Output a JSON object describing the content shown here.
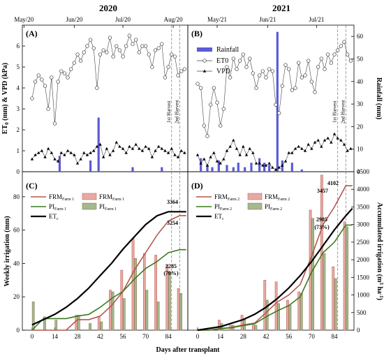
{
  "colors": {
    "rainfall": "#5b5bd6",
    "frm_line": "#b4564e",
    "frm_bar_fill": "#e7a9a3",
    "frm_bar_edge": "#b4564e",
    "pi_line": "#3b7a1f",
    "pi_bar_fill": "#a4b98d",
    "pi_bar_edge": "#7a6d4a",
    "etc": "#000000",
    "frm_total_text": "#b4564e",
    "pi_total_text": "#3b7a1f"
  },
  "chart_data": [
    {
      "panel": "(A)",
      "type": "line",
      "title": "2020",
      "top_axis_ticks": [
        "May/20",
        "Jun/20",
        "Jul/20",
        "Aug/20"
      ],
      "ylabel": "ET0 (mm) & VPD (kPa)",
      "ylabel_parts": {
        "a": "ET",
        "sub": "0",
        "b": " (mm) & VPD (kPa)"
      },
      "ylim": [
        0,
        7
      ],
      "yticks": [
        0,
        1,
        2,
        3,
        4,
        5,
        6
      ],
      "rain_ylim": [
        0,
        65
      ],
      "x_range": [
        -6,
        96
      ],
      "harvest_markers": [
        {
          "day": 86,
          "label": "1st Harvest"
        },
        {
          "day": 91,
          "label": "2nd Harvest"
        }
      ],
      "series": [
        {
          "name": "ET0",
          "marker": "circle",
          "x": [
            0,
            2,
            4,
            6,
            8,
            10,
            12,
            14,
            16,
            18,
            20,
            22,
            24,
            26,
            28,
            30,
            32,
            34,
            36,
            38,
            40,
            42,
            44,
            46,
            48,
            50,
            52,
            54,
            56,
            58,
            60,
            62,
            64,
            66,
            68,
            70,
            72,
            74,
            76,
            78,
            80,
            82,
            84,
            86,
            88,
            90,
            92,
            94
          ],
          "y": [
            3.5,
            4.3,
            4.6,
            4.4,
            4.1,
            3.0,
            4.5,
            2.3,
            4.3,
            4.8,
            4.7,
            4.5,
            4.9,
            5.2,
            5.6,
            5.3,
            5.7,
            6.0,
            6.3,
            5.9,
            4.0,
            5.6,
            5.8,
            5.7,
            6.4,
            5.5,
            6.0,
            5.8,
            5.5,
            6.0,
            6.5,
            6.1,
            6.3,
            5.7,
            6.0,
            6.0,
            5.6,
            5.0,
            5.8,
            5.9,
            6.1,
            4.5,
            5.0,
            5.6,
            5.5,
            4.6,
            4.8,
            4.9
          ]
        },
        {
          "name": "VPD",
          "marker": "triangle",
          "x": [
            0,
            2,
            4,
            6,
            8,
            10,
            12,
            14,
            16,
            18,
            20,
            22,
            24,
            26,
            28,
            30,
            32,
            34,
            36,
            38,
            40,
            42,
            44,
            46,
            48,
            50,
            52,
            54,
            56,
            58,
            60,
            62,
            64,
            66,
            68,
            70,
            72,
            74,
            76,
            78,
            80,
            82,
            84,
            86,
            88,
            90,
            92,
            94
          ],
          "y": [
            0.6,
            0.8,
            0.9,
            1.0,
            0.7,
            1.1,
            0.9,
            0.6,
            0.5,
            0.9,
            0.8,
            1.0,
            0.9,
            0.8,
            0.4,
            0.6,
            0.9,
            0.8,
            0.9,
            1.0,
            1.2,
            1.3,
            0.7,
            1.1,
            0.8,
            1.0,
            1.4,
            1.2,
            1.1,
            0.9,
            1.2,
            1.1,
            1.3,
            1.1,
            1.0,
            1.2,
            1.1,
            0.7,
            1.0,
            1.2,
            1.1,
            1.0,
            0.9,
            1.1,
            0.8,
            0.7,
            1.0,
            0.9
          ]
        },
        {
          "name": "Rainfall",
          "axis": "right",
          "type": "bar",
          "x": [
            17,
            36,
            41,
            62,
            80
          ],
          "y": [
            7,
            5,
            24,
            2,
            2
          ]
        }
      ]
    },
    {
      "panel": "(B)",
      "type": "line",
      "title": "2021",
      "top_axis_ticks": [
        "May/21",
        "Jun/21",
        "Jul/21"
      ],
      "right_ylabel": "Rainfall (mm)",
      "ylim": [
        0,
        7
      ],
      "rain_ylim": [
        0,
        65
      ],
      "rain_yticks": [
        0,
        10,
        20,
        30,
        40,
        50,
        60
      ],
      "x_range": [
        -6,
        96
      ],
      "harvest_markers": [
        {
          "day": 86,
          "label": "1st Harvest"
        },
        {
          "day": 91,
          "label": "2nd Harvest"
        }
      ],
      "legend": [
        "Rainfall",
        "ET0",
        "VPD"
      ],
      "series": [
        {
          "name": "ET0",
          "marker": "circle",
          "x": [
            0,
            2,
            4,
            6,
            8,
            10,
            12,
            14,
            16,
            18,
            20,
            22,
            24,
            26,
            28,
            30,
            32,
            34,
            36,
            38,
            40,
            42,
            44,
            46,
            48,
            50,
            52,
            54,
            56,
            58,
            60,
            62,
            64,
            66,
            68,
            70,
            72,
            74,
            76,
            78,
            80,
            82,
            84,
            86,
            88,
            90,
            92,
            94
          ],
          "y": [
            4.2,
            4.0,
            2.2,
            1.7,
            3.2,
            4.0,
            3.3,
            2.2,
            3.0,
            5.0,
            4.5,
            5.4,
            4.9,
            5.3,
            5.6,
            5.0,
            5.4,
            4.7,
            4.0,
            4.6,
            4.8,
            4.5,
            4.9,
            4.8,
            3.2,
            2.8,
            4.1,
            5.1,
            4.9,
            3.9,
            4.0,
            5.2,
            4.5,
            4.6,
            5.3,
            4.3,
            3.8,
            5.0,
            5.4,
            4.9,
            5.6,
            5.2,
            5.6,
            5.8,
            6.0,
            6.2,
            5.6,
            5.3
          ]
        },
        {
          "name": "VPD",
          "marker": "triangle",
          "x": [
            0,
            2,
            4,
            6,
            8,
            10,
            12,
            14,
            16,
            18,
            20,
            22,
            24,
            26,
            28,
            30,
            32,
            34,
            36,
            38,
            40,
            42,
            44,
            46,
            48,
            50,
            52,
            54,
            56,
            58,
            60,
            62,
            64,
            66,
            68,
            70,
            72,
            74,
            76,
            78,
            80,
            82,
            84,
            86,
            88,
            90,
            92,
            94
          ],
          "y": [
            0.8,
            0.4,
            0.6,
            0.3,
            0.7,
            0.9,
            0.5,
            0.4,
            0.6,
            1.0,
            1.2,
            1.5,
            1.1,
            0.8,
            1.2,
            0.8,
            1.1,
            0.9,
            0.4,
            0.4,
            0.3,
            0.3,
            0.4,
            0.2,
            0.1,
            0.2,
            0.3,
            0.5,
            0.9,
            0.9,
            1.1,
            1.2,
            1.1,
            1.0,
            1.3,
            1.1,
            1.4,
            1.5,
            1.2,
            1.5,
            1.6,
            1.4,
            1.8,
            1.6,
            1.5,
            1.3,
            1.0,
            1.1
          ]
        },
        {
          "name": "Rainfall",
          "axis": "right",
          "type": "bar",
          "x": [
            2,
            6,
            9,
            13,
            18,
            22,
            25,
            29,
            33,
            38,
            41,
            44,
            49,
            52,
            58,
            64
          ],
          "y": [
            6,
            3,
            2,
            5,
            3,
            2,
            4,
            2,
            4,
            6,
            4,
            3,
            62,
            5,
            4,
            1
          ]
        }
      ]
    },
    {
      "panel": "(C)",
      "type": "bar",
      "ylabel": "Weekly irrigation (mm)",
      "xlabel": "Days after transplant",
      "ylim": [
        0,
        95
      ],
      "yticks": [
        0,
        20,
        40,
        60,
        80
      ],
      "cum_ylim": [
        0,
        4500
      ],
      "xticks": [
        0,
        14,
        28,
        42,
        56,
        70,
        84
      ],
      "x_range": [
        -6,
        96
      ],
      "harvest_markers": [
        86,
        91
      ],
      "legend": [
        "FRMFarm 1",
        "PIFarm 1",
        "ETc",
        "FRMFarm 1",
        "PIFarm 1"
      ],
      "annotations": [
        "3364",
        "3254",
        "2285",
        "(70%)"
      ],
      "series": [
        {
          "name": "FRM Farm 1 (weekly)",
          "type": "bar",
          "x": [
            0,
            7,
            14,
            21,
            28,
            35,
            42,
            49,
            56,
            63,
            70,
            77,
            84,
            91
          ],
          "y": [
            0,
            0,
            0,
            0,
            9,
            0,
            8,
            24,
            36,
            55,
            46,
            45,
            39,
            25
          ]
        },
        {
          "name": "PI Farm 1 (weekly)",
          "type": "bar",
          "x": [
            0,
            7,
            14,
            21,
            28,
            35,
            42,
            49,
            56,
            63,
            70,
            77,
            84,
            91
          ],
          "y": [
            17,
            8,
            6,
            0,
            9,
            4,
            5,
            23,
            19,
            43,
            24,
            17,
            35,
            22
          ]
        },
        {
          "name": "FRM Farm 1 (accumulated)",
          "axis": "right",
          "type": "line",
          "x": [
            0,
            7,
            14,
            21,
            28,
            35,
            42,
            49,
            56,
            63,
            70,
            77,
            84,
            91,
            95
          ],
          "y": [
            0,
            0,
            0,
            0,
            300,
            300,
            400,
            700,
            1100,
            1700,
            2200,
            2700,
            3100,
            3254,
            3254
          ]
        },
        {
          "name": "PI Farm 1 (accumulated)",
          "axis": "right",
          "type": "line",
          "x": [
            0,
            7,
            14,
            21,
            28,
            35,
            42,
            49,
            56,
            63,
            70,
            77,
            84,
            91,
            95
          ],
          "y": [
            0,
            330,
            330,
            330,
            400,
            450,
            650,
            900,
            1100,
            1450,
            1750,
            1950,
            2200,
            2285,
            2285
          ]
        },
        {
          "name": "ETc (accumulated)",
          "axis": "right",
          "type": "line",
          "x": [
            0,
            7,
            14,
            21,
            28,
            35,
            42,
            49,
            56,
            63,
            70,
            77,
            84,
            91,
            95
          ],
          "y": [
            150,
            300,
            450,
            650,
            900,
            1200,
            1550,
            1900,
            2300,
            2650,
            3000,
            3250,
            3364,
            3364,
            3364
          ]
        }
      ]
    },
    {
      "panel": "(D)",
      "type": "bar",
      "right_ylabel": "Accumulated irrigation (m3 ha-1)",
      "right_ylabel_parts": {
        "a": "Accumulated irrigation (m",
        "sup1": "3",
        "b": " ha",
        "sup2": "-1",
        "c": ")"
      },
      "xlabel": "Days after transplant",
      "ylim": [
        0,
        95
      ],
      "cum_ylim": [
        0,
        4500
      ],
      "cum_yticks": [
        0,
        500,
        1000,
        1500,
        2000,
        2500,
        3000,
        3500,
        4000,
        4500
      ],
      "xticks": [
        0,
        14,
        28,
        42,
        56,
        70,
        84
      ],
      "x_range": [
        -6,
        96
      ],
      "harvest_markers": [
        86,
        91
      ],
      "legend": [
        "FRMFarm 2",
        "PIFarm 2",
        "ETc",
        "FRMFarm 2",
        "PIFarm 2"
      ],
      "annotations": [
        "4102",
        "3457",
        "2985",
        "(73%)"
      ],
      "series": [
        {
          "name": "FRM Farm 2 (weekly)",
          "type": "bar",
          "x": [
            0,
            7,
            14,
            21,
            28,
            35,
            42,
            49,
            56,
            63,
            70,
            77,
            84,
            91
          ],
          "y": [
            0,
            0,
            6,
            3,
            9,
            3,
            30,
            29,
            18,
            23,
            72,
            93,
            38,
            65
          ]
        },
        {
          "name": "PI Farm 2 (weekly)",
          "type": "bar",
          "x": [
            0,
            7,
            14,
            21,
            28,
            35,
            42,
            49,
            56,
            63,
            70,
            77,
            84,
            91
          ],
          "y": [
            0,
            0,
            4,
            3,
            7,
            3,
            18,
            16,
            15,
            22,
            67,
            46,
            31,
            62
          ]
        },
        {
          "name": "FRM Farm 2 (accumulated)",
          "axis": "right",
          "type": "line",
          "x": [
            0,
            7,
            14,
            21,
            28,
            35,
            42,
            49,
            56,
            63,
            70,
            77,
            84,
            91,
            95
          ],
          "y": [
            0,
            0,
            50,
            80,
            150,
            200,
            500,
            800,
            1000,
            1300,
            2100,
            3000,
            3500,
            4102,
            4102
          ]
        },
        {
          "name": "PI Farm 2 (accumulated)",
          "axis": "right",
          "type": "line",
          "x": [
            0,
            7,
            14,
            21,
            28,
            35,
            42,
            49,
            56,
            63,
            70,
            77,
            84,
            91,
            95
          ],
          "y": [
            0,
            0,
            40,
            70,
            130,
            180,
            380,
            550,
            700,
            950,
            1650,
            2200,
            2500,
            2985,
            2985
          ]
        },
        {
          "name": "ETc (accumulated)",
          "axis": "right",
          "type": "line",
          "x": [
            0,
            7,
            14,
            21,
            28,
            35,
            42,
            49,
            56,
            63,
            70,
            77,
            84,
            91,
            95
          ],
          "y": [
            0,
            50,
            100,
            200,
            300,
            450,
            650,
            900,
            1200,
            1550,
            1950,
            2400,
            2850,
            3250,
            3457
          ]
        }
      ]
    }
  ]
}
